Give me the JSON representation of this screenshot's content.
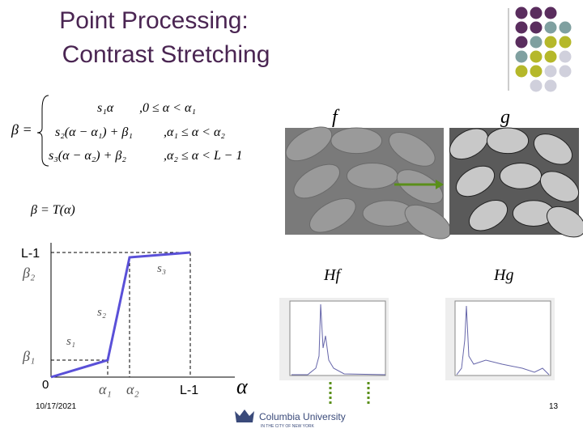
{
  "title": [
    "Point Processing:",
    "Contrast Stretching"
  ],
  "equation": {
    "lhs": "β =",
    "cases": [
      {
        "expr": "s₁α",
        "cond": ",0 ≤ α < α₁"
      },
      {
        "expr": "s₂(α − α₁) + β₁",
        "cond": ",α₁ ≤ α < α₂"
      },
      {
        "expr": "s₃(α − α₂) + β₂",
        "cond": ",α₂ ≤ α < L − 1"
      }
    ]
  },
  "graph": {
    "function_label": "β = T(α)",
    "y_max": "L-1",
    "beta2": "β₂",
    "beta1": "β₁",
    "origin": "0",
    "alpha1": "α₁",
    "alpha2": "α₂",
    "x_max": "L-1",
    "x_axis": "α",
    "s1": "s₁",
    "s2": "s₂",
    "s3": "s₃"
  },
  "images": {
    "input_label": "f",
    "output_label": "g"
  },
  "histograms": {
    "input_label": "Hf",
    "output_label": "Hg"
  },
  "footer": {
    "date": "10/17/2021",
    "page": "13",
    "logo": "Columbia University",
    "logo_sub": "IN THE CITY OF NEW YORK"
  }
}
